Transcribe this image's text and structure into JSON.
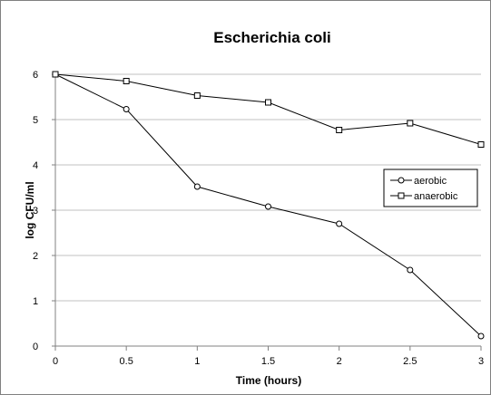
{
  "chart_data": {
    "type": "line",
    "title": "Escherichia coli",
    "xlabel": "Time (hours)",
    "ylabel": "log CFU/ml",
    "x": [
      0,
      0.5,
      1,
      1.5,
      2,
      2.5,
      3
    ],
    "x_ticks": [
      "0",
      "0.5",
      "1",
      "1.5",
      "2",
      "2.5",
      "3"
    ],
    "y_ticks": [
      "0",
      "1",
      "2",
      "3",
      "4",
      "5",
      "6"
    ],
    "xlim": [
      0,
      3
    ],
    "ylim": [
      0,
      6
    ],
    "grid": "horizontal",
    "legend_position": "right",
    "series": [
      {
        "name": "aerobic",
        "marker": "circle",
        "values": [
          6.0,
          5.23,
          3.52,
          3.08,
          2.7,
          1.68,
          0.22
        ]
      },
      {
        "name": "anaerobic",
        "marker": "square",
        "values": [
          6.0,
          5.85,
          5.53,
          5.38,
          4.77,
          4.92,
          4.45
        ]
      }
    ],
    "colors": {
      "line": "#000000",
      "grid": "#c0c0c0",
      "axis": "#808080",
      "frame": "#808080",
      "background": "#ffffff"
    }
  }
}
